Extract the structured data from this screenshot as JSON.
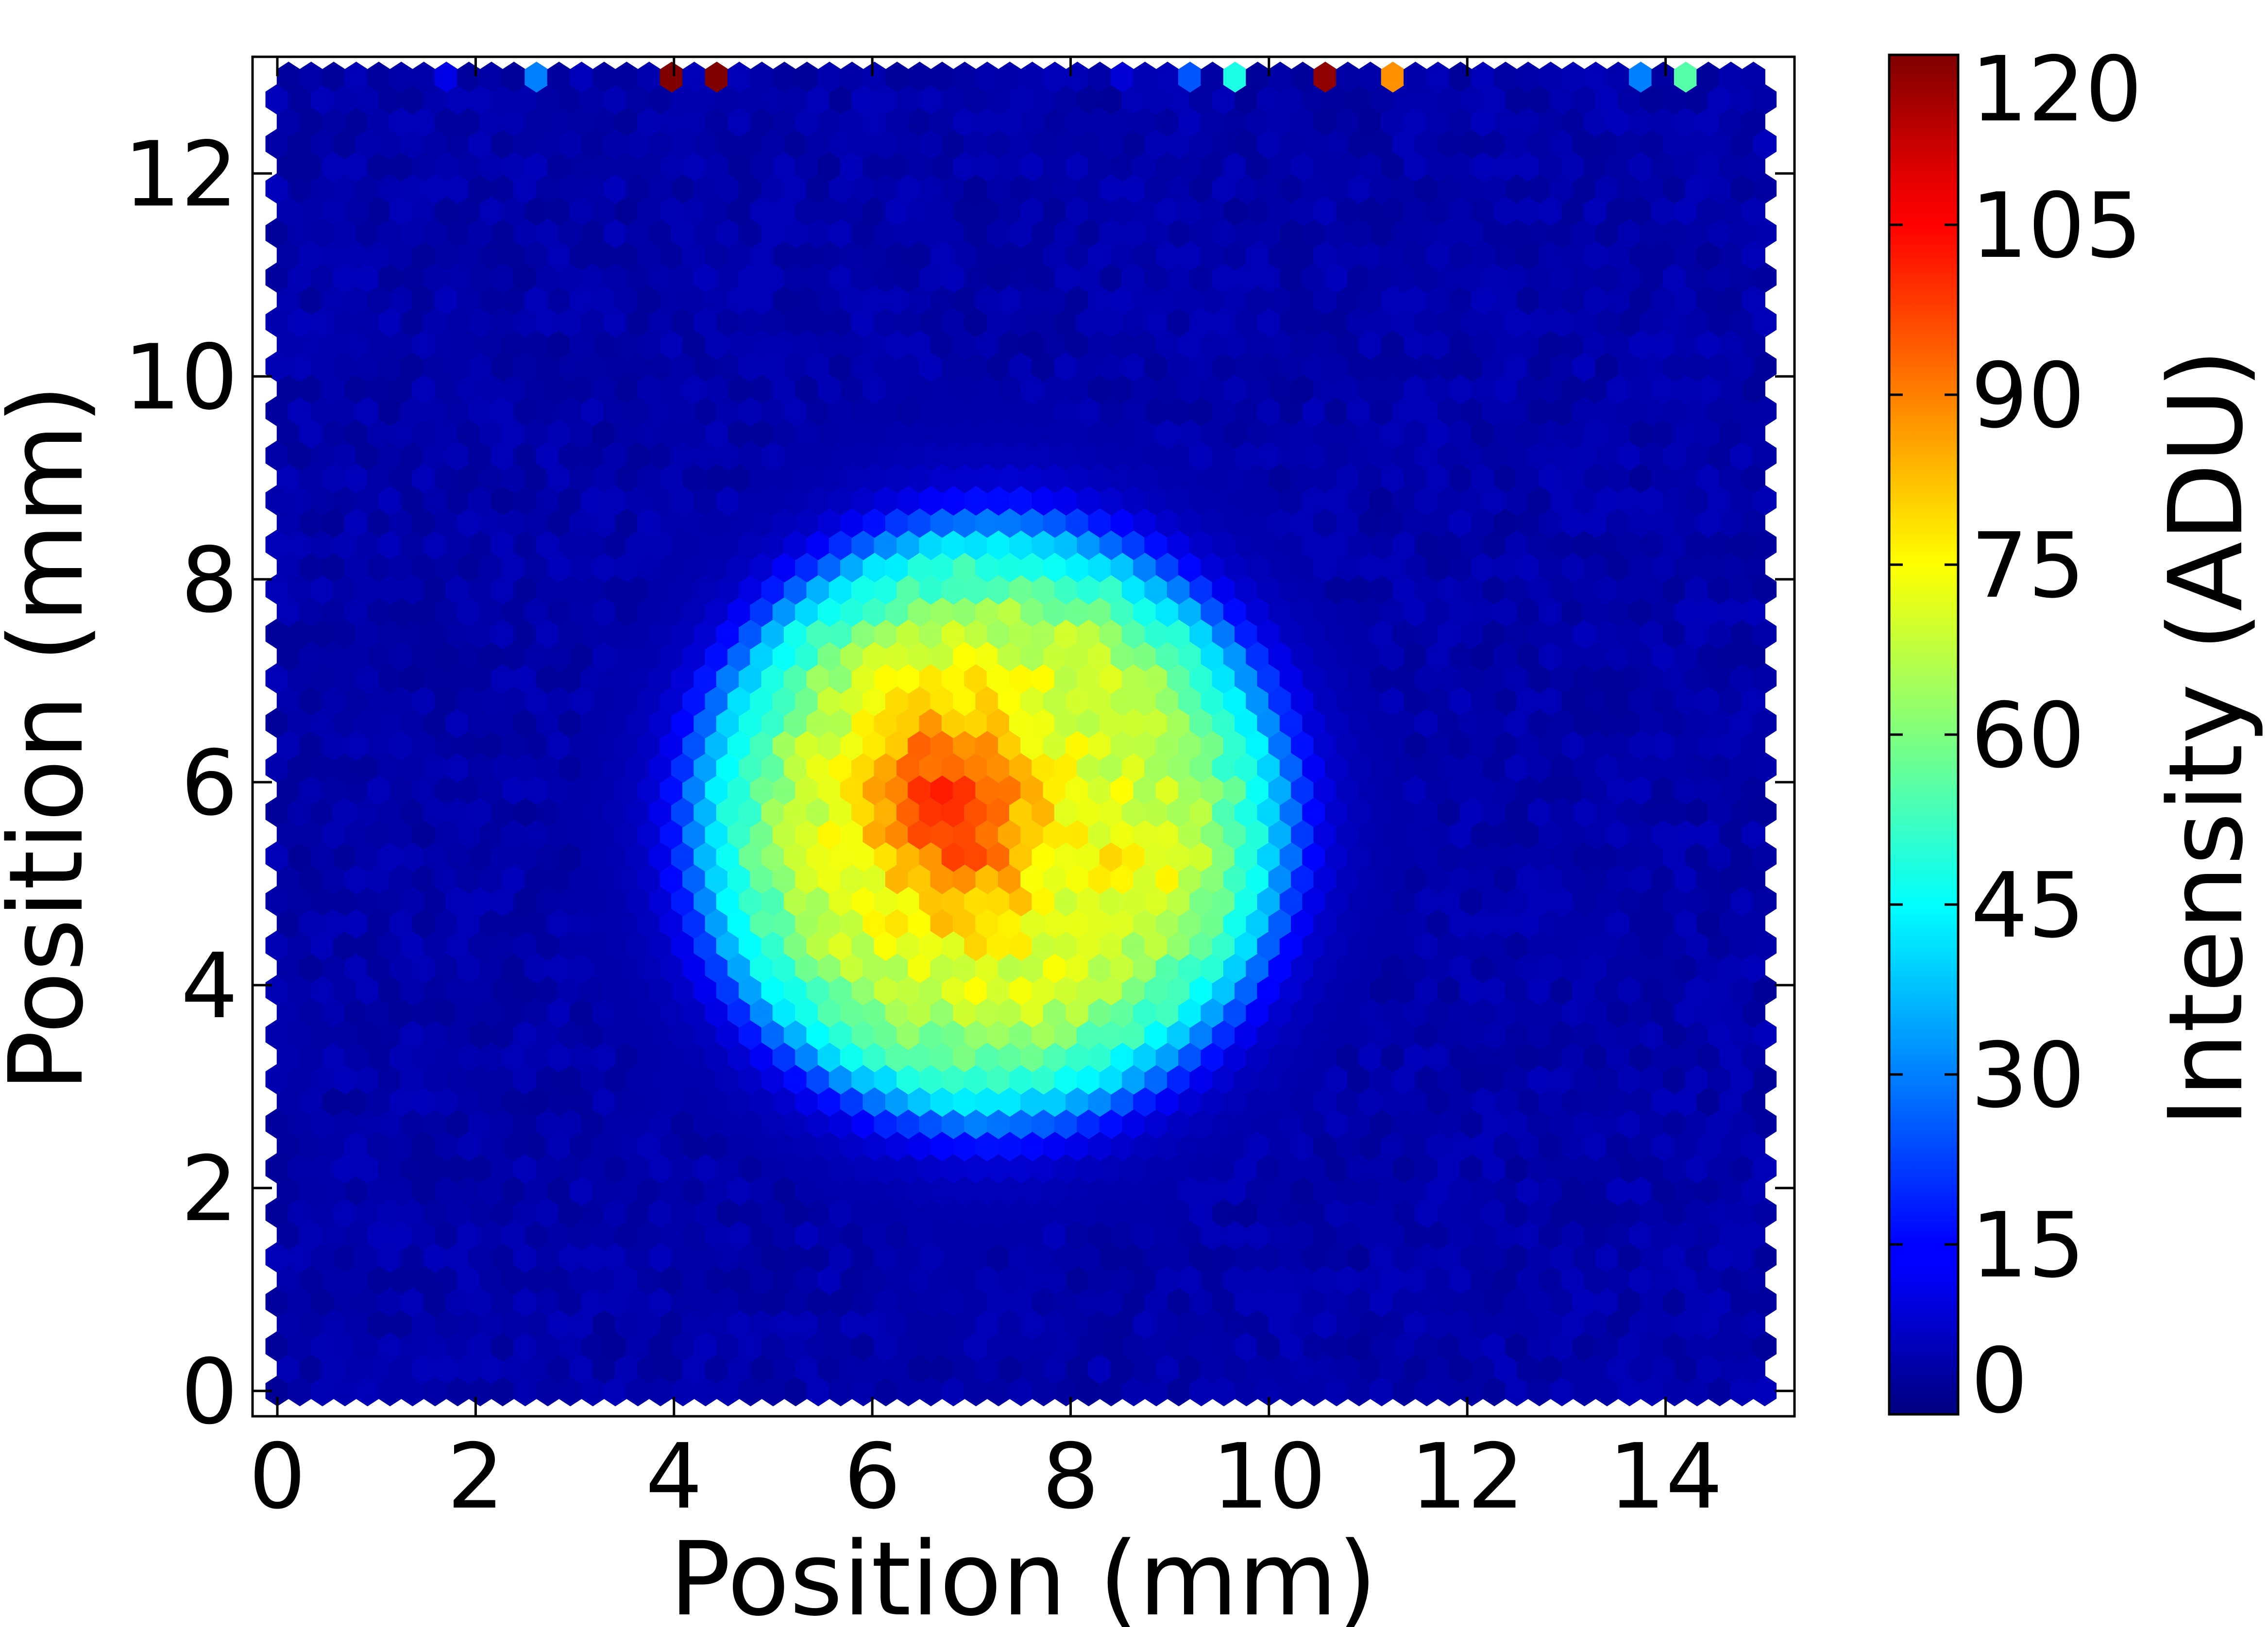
{
  "chart_data": {
    "type": "heatmap",
    "subtype": "hexbin",
    "title": "",
    "xlabel": "Position (mm)",
    "ylabel": "Position (mm)",
    "colorbar_label": "Intensity (ADU)",
    "colormap": "jet",
    "xlim": [
      -0.25,
      15.3
    ],
    "ylim": [
      -0.25,
      13.15
    ],
    "clim": [
      0,
      120
    ],
    "x_ticks": [
      0,
      2,
      4,
      6,
      8,
      10,
      12,
      14
    ],
    "x_tick_labels": [
      "0",
      "2",
      "4",
      "6",
      "8",
      "10",
      "12",
      "14"
    ],
    "y_ticks": [
      0,
      2,
      4,
      6,
      8,
      10,
      12
    ],
    "y_tick_labels": [
      "0",
      "2",
      "4",
      "6",
      "8",
      "10",
      "12"
    ],
    "colorbar_ticks": [
      0,
      15,
      30,
      45,
      60,
      75,
      90,
      105,
      120
    ],
    "colorbar_tick_labels": [
      "0",
      "15",
      "30",
      "45",
      "60",
      "75",
      "90",
      "105",
      "120"
    ],
    "data_extent": {
      "x": [
        0,
        15
      ],
      "y": [
        0,
        12.95
      ]
    },
    "hex_grid": {
      "nx": 67,
      "ny": 60
    },
    "background_level": 5,
    "spot": {
      "center": [
        7.2,
        5.6
      ],
      "radius_x": 2.7,
      "radius_y": 2.65,
      "edge_width": 0.22,
      "plateau_level": 70,
      "rim_level": 18
    },
    "hot_regions": [
      {
        "center": [
          6.9,
          5.7
        ],
        "sigma": [
          0.55,
          0.75
        ],
        "peak": 27
      },
      {
        "center": [
          6.2,
          6.0
        ],
        "sigma": [
          0.35,
          0.45
        ],
        "peak": 10
      },
      {
        "center": [
          8.7,
          5.2
        ],
        "sigma": [
          0.5,
          0.35
        ],
        "peak": 6
      }
    ],
    "hot_pixels": [
      {
        "x": 1.8,
        "y": 12.9,
        "value": 12
      },
      {
        "x": 2.5,
        "y": 12.9,
        "value": 30
      },
      {
        "x": 3.9,
        "y": 12.9,
        "value": 120
      },
      {
        "x": 4.4,
        "y": 12.9,
        "value": 120
      },
      {
        "x": 8.6,
        "y": 12.9,
        "value": 10
      },
      {
        "x": 9.1,
        "y": 12.9,
        "value": 25
      },
      {
        "x": 9.55,
        "y": 12.9,
        "value": 48
      },
      {
        "x": 10.5,
        "y": 12.9,
        "value": 118
      },
      {
        "x": 11.2,
        "y": 12.9,
        "value": 88
      },
      {
        "x": 13.85,
        "y": 12.9,
        "value": 30
      },
      {
        "x": 14.1,
        "y": 12.9,
        "value": 55
      }
    ]
  }
}
